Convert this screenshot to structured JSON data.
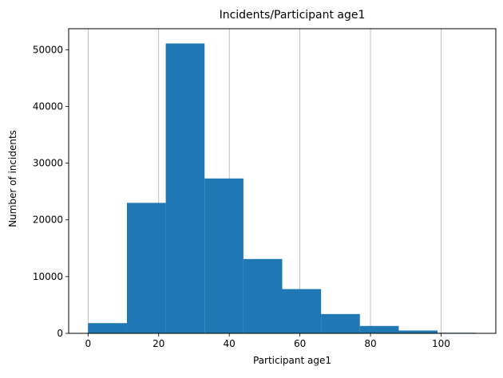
{
  "chart_data": {
    "type": "bar",
    "title": "Incidents/Participant age1",
    "xlabel": "Participant age1",
    "ylabel": "Number of incidents",
    "bin_edges": [
      0,
      11,
      22,
      33,
      44,
      55,
      66,
      77,
      88,
      99,
      110
    ],
    "values": [
      1800,
      23000,
      51100,
      27300,
      13100,
      7800,
      3400,
      1300,
      500,
      100
    ],
    "xlim": [
      -5.5,
      115.5
    ],
    "ylim": [
      0,
      53700
    ],
    "x_ticks": [
      0,
      20,
      40,
      60,
      80,
      100
    ],
    "y_ticks": [
      0,
      10000,
      20000,
      30000,
      40000,
      50000
    ],
    "grid": "vertical",
    "legend": "none",
    "bar_color": "#1f77b4",
    "grid_color": "#b0b0b0"
  }
}
